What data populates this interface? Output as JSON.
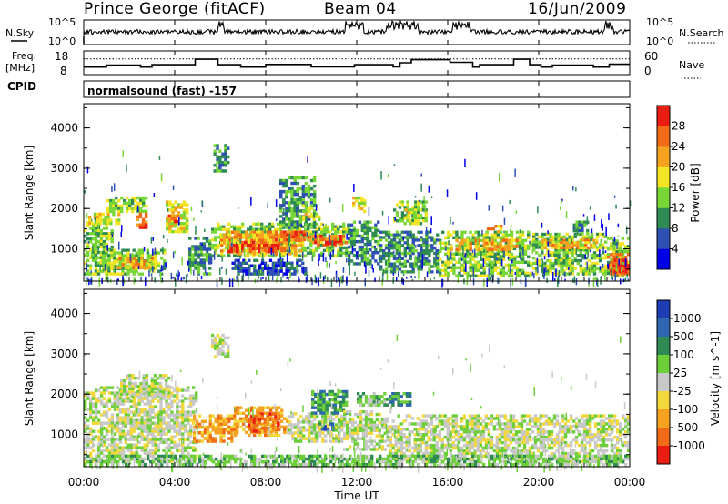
{
  "header": {
    "station": "Prince George (fitACF)",
    "beam": "Beam 04",
    "date": "16/Jun/2009",
    "nsky_label": "N.Sky",
    "nsearch_label": "N.Search",
    "freq_label": "Freq.",
    "freq_unit": "[MHz]",
    "nave_label": "Nave",
    "cpid_label": "CPID",
    "cpid_text": "normalsound (fast) -157"
  },
  "chart_data": [
    {
      "type": "line",
      "name": "noise-panel",
      "left_ticks": [
        "10^5",
        "10^0"
      ],
      "right_ticks": [
        "10^5",
        "10^0"
      ],
      "note": "N.Sky (solid) and N.Search (dotted) noise levels"
    },
    {
      "type": "line",
      "name": "freq-nave-panel",
      "left_ticks": [
        "18",
        "8"
      ],
      "right_ticks": [
        "60",
        "0"
      ],
      "freq_ylim": [
        8,
        18
      ],
      "nave_ylim": [
        0,
        60
      ],
      "freq_steps": [
        {
          "t": 0.0,
          "v": 11.2
        },
        {
          "t": 1.0,
          "v": 12.0
        },
        {
          "t": 2.5,
          "v": 11.2
        },
        {
          "t": 3.0,
          "v": 12.2
        },
        {
          "t": 4.9,
          "v": 14.5
        },
        {
          "t": 5.9,
          "v": 12.2
        },
        {
          "t": 6.9,
          "v": 11.2
        },
        {
          "t": 8.0,
          "v": 12.3
        },
        {
          "t": 10.0,
          "v": 11.3
        },
        {
          "t": 11.9,
          "v": 12.2
        },
        {
          "t": 13.6,
          "v": 11.3
        },
        {
          "t": 13.9,
          "v": 13.0
        },
        {
          "t": 14.4,
          "v": 14.3
        },
        {
          "t": 16.1,
          "v": 13.2
        },
        {
          "t": 17.1,
          "v": 11.2
        },
        {
          "t": 17.4,
          "v": 12.2
        },
        {
          "t": 18.9,
          "v": 14.5
        },
        {
          "t": 19.6,
          "v": 12.2
        },
        {
          "t": 20.1,
          "v": 11.2
        },
        {
          "t": 20.6,
          "v": 12.0
        },
        {
          "t": 22.4,
          "v": 11.2
        },
        {
          "t": 23.1,
          "v": 12.4
        },
        {
          "t": 24.0,
          "v": 12.4
        }
      ],
      "nave_level": 40
    },
    {
      "type": "heatmap",
      "name": "power-panel",
      "quantity": "Power",
      "ylabel": "Slant Range [km]",
      "ylim": [
        200,
        4600
      ],
      "yticks": [
        1000,
        2000,
        3000,
        4000
      ],
      "colorbar_title": "Power [dB]",
      "colorbar_ticks": [
        4,
        8,
        12,
        16,
        20,
        24,
        28
      ],
      "colorbar_range": [
        0,
        32
      ],
      "colorbar_colors": [
        "#0000e6",
        "#2e4fb4",
        "#2f8a53",
        "#78d636",
        "#f2e422",
        "#f4a21f",
        "#f06a18",
        "#ea1d12"
      ],
      "features": [
        {
          "t0": 0.0,
          "t1": 1.3,
          "r0": 350,
          "r1": 1750,
          "c": 3
        },
        {
          "t0": 0.2,
          "t1": 1.6,
          "r0": 1600,
          "r1": 1900,
          "c": 4
        },
        {
          "t0": 1.0,
          "t1": 2.8,
          "r0": 1900,
          "r1": 2300,
          "c": 3
        },
        {
          "t0": 0.8,
          "t1": 3.6,
          "r0": 350,
          "r1": 1000,
          "c": 3
        },
        {
          "t0": 1.3,
          "t1": 3.2,
          "r0": 500,
          "r1": 800,
          "c": 5
        },
        {
          "t0": 2.3,
          "t1": 2.8,
          "r0": 1500,
          "r1": 1900,
          "c": 6
        },
        {
          "t0": 3.6,
          "t1": 4.6,
          "r0": 1400,
          "r1": 2200,
          "c": 4
        },
        {
          "t0": 3.7,
          "t1": 4.2,
          "r0": 1650,
          "r1": 1850,
          "c": 6
        },
        {
          "t0": 4.6,
          "t1": 5.6,
          "r0": 350,
          "r1": 1300,
          "c": 2
        },
        {
          "t0": 5.6,
          "t1": 11.6,
          "r0": 800,
          "r1": 1650,
          "c": 3
        },
        {
          "t0": 6.0,
          "t1": 9.6,
          "r0": 850,
          "r1": 1450,
          "c": 5
        },
        {
          "t0": 6.2,
          "t1": 8.6,
          "r0": 900,
          "r1": 1200,
          "c": 7
        },
        {
          "t0": 8.4,
          "t1": 10.0,
          "r0": 1200,
          "r1": 1450,
          "c": 6
        },
        {
          "t0": 10.0,
          "t1": 11.6,
          "r0": 1050,
          "r1": 1350,
          "c": 6
        },
        {
          "t0": 10.6,
          "t1": 11.4,
          "r0": 1100,
          "r1": 1200,
          "c": 7
        },
        {
          "t0": 5.7,
          "t1": 6.4,
          "r0": 2900,
          "r1": 3600,
          "c": 2
        },
        {
          "t0": 6.5,
          "t1": 9.8,
          "r0": 350,
          "r1": 750,
          "c": 1
        },
        {
          "t0": 8.6,
          "t1": 10.2,
          "r0": 1500,
          "r1": 2800,
          "c": 2
        },
        {
          "t0": 9.6,
          "t1": 10.4,
          "r0": 1700,
          "r1": 2100,
          "c": 4
        },
        {
          "t0": 11.6,
          "t1": 13.0,
          "r0": 600,
          "r1": 1700,
          "c": 2
        },
        {
          "t0": 11.8,
          "t1": 12.4,
          "r0": 1900,
          "r1": 2300,
          "c": 4
        },
        {
          "t0": 13.0,
          "t1": 15.6,
          "r0": 400,
          "r1": 1450,
          "c": 2
        },
        {
          "t0": 13.6,
          "t1": 15.1,
          "r0": 1600,
          "r1": 2200,
          "c": 3
        },
        {
          "t0": 14.1,
          "t1": 14.6,
          "r0": 1750,
          "r1": 2000,
          "c": 4
        },
        {
          "t0": 15.6,
          "t1": 19.6,
          "r0": 300,
          "r1": 1450,
          "c": 3
        },
        {
          "t0": 16.1,
          "t1": 19.1,
          "r0": 950,
          "r1": 1250,
          "c": 5
        },
        {
          "t0": 17.6,
          "t1": 18.4,
          "r0": 1400,
          "r1": 1600,
          "c": 5
        },
        {
          "t0": 19.6,
          "t1": 23.0,
          "r0": 350,
          "r1": 1400,
          "c": 3
        },
        {
          "t0": 20.1,
          "t1": 22.6,
          "r0": 1000,
          "r1": 1250,
          "c": 5
        },
        {
          "t0": 21.5,
          "t1": 22.2,
          "r0": 1350,
          "r1": 1700,
          "c": 2
        },
        {
          "t0": 23.0,
          "t1": 24.0,
          "r0": 300,
          "r1": 1300,
          "c": 3
        },
        {
          "t0": 23.0,
          "t1": 24.0,
          "r0": 350,
          "r1": 900,
          "c": 6
        },
        {
          "t0": 23.3,
          "t1": 24.0,
          "r0": 400,
          "r1": 750,
          "c": 7
        }
      ]
    },
    {
      "type": "heatmap",
      "name": "velocity-panel",
      "quantity": "Velocity",
      "ylabel": "Slant Range [km]",
      "ylim": [
        200,
        4600
      ],
      "yticks": [
        1000,
        2000,
        3000,
        4000
      ],
      "colorbar_title": "Velocity [m s^-1]",
      "colorbar_ticks": [
        "1000",
        "500",
        "100",
        "25",
        "-25",
        "-100",
        "-500",
        "-1000"
      ],
      "colorbar_colors": [
        "#1e3cb4",
        "#2f66b0",
        "#2f8a53",
        "#6ccf3a",
        "#c8c8c8",
        "#f2d83a",
        "#f4a21f",
        "#f06a18",
        "#ea1d12"
      ],
      "features": [
        {
          "t0": 0.0,
          "t1": 5.0,
          "r0": 300,
          "r1": 2200,
          "c": 4
        },
        {
          "t0": 1.6,
          "t1": 3.8,
          "r0": 1900,
          "r1": 2500,
          "c": 4
        },
        {
          "t0": 4.8,
          "t1": 6.8,
          "r0": 800,
          "r1": 1500,
          "c": 6
        },
        {
          "t0": 6.6,
          "t1": 9.0,
          "r0": 950,
          "r1": 1700,
          "c": 6
        },
        {
          "t0": 7.2,
          "t1": 8.6,
          "r0": 1050,
          "r1": 1550,
          "c": 7
        },
        {
          "t0": 9.0,
          "t1": 11.4,
          "r0": 800,
          "r1": 1550,
          "c": 4
        },
        {
          "t0": 10.2,
          "t1": 11.0,
          "r0": 1100,
          "r1": 1300,
          "c": 1
        },
        {
          "t0": 10.0,
          "t1": 11.6,
          "r0": 1500,
          "r1": 2100,
          "c": 2
        },
        {
          "t0": 11.4,
          "t1": 13.3,
          "r0": 600,
          "r1": 1600,
          "c": 4
        },
        {
          "t0": 12.0,
          "t1": 13.4,
          "r0": 1700,
          "r1": 2050,
          "c": 3
        },
        {
          "t0": 13.4,
          "t1": 14.4,
          "r0": 1700,
          "r1": 2050,
          "c": 2
        },
        {
          "t0": 13.3,
          "t1": 24.0,
          "r0": 300,
          "r1": 1500,
          "c": 4
        },
        {
          "t0": 5.6,
          "t1": 6.4,
          "r0": 2900,
          "r1": 3500,
          "c": 4
        },
        {
          "t0": 0.0,
          "t1": 24.0,
          "r0": 220,
          "r1": 500,
          "c": 3
        }
      ]
    }
  ],
  "time_axis": {
    "ticks": [
      "00:00",
      "04:00",
      "08:00",
      "12:00",
      "16:00",
      "20:00",
      "00:00"
    ],
    "xlabel": "Time UT",
    "xlim": [
      0,
      24
    ]
  }
}
